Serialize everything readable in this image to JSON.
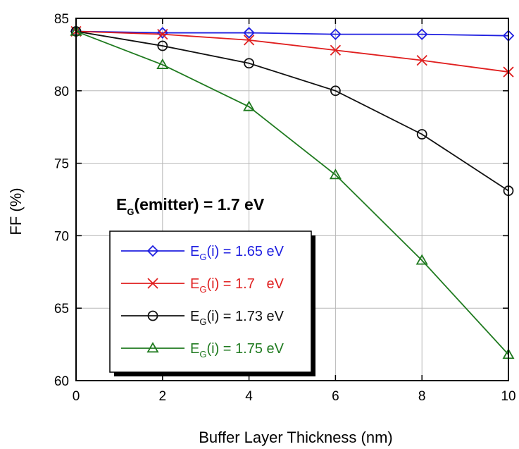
{
  "chart_data": {
    "type": "line",
    "xlabel": "Buffer Layer Thickness (nm)",
    "ylabel": "FF (%)",
    "xlim": [
      0,
      10
    ],
    "ylim": [
      60,
      85
    ],
    "xticks": [
      "0",
      "2",
      "4",
      "6",
      "8",
      "10"
    ],
    "yticks": [
      "60",
      "65",
      "70",
      "75",
      "80",
      "85"
    ],
    "grid": true,
    "legend_position": "bottom-left",
    "annotation": {
      "main": "E",
      "sub": "G",
      "rest": "(emitter) = 1.7 eV"
    },
    "x": [
      0,
      2,
      4,
      6,
      8,
      10
    ],
    "series": [
      {
        "label_main": "E",
        "label_sub": "G",
        "label_rest": "(i) = 1.65 eV",
        "color": "#1f1fe0",
        "marker": "diamond",
        "values": [
          84.1,
          84.0,
          84.0,
          83.9,
          83.9,
          83.8
        ]
      },
      {
        "label_main": "E",
        "label_sub": "G",
        "label_rest": "(i) = 1.7   eV",
        "color": "#e01f1f",
        "marker": "x",
        "values": [
          84.1,
          83.9,
          83.5,
          82.8,
          82.1,
          81.3
        ]
      },
      {
        "label_main": "E",
        "label_sub": "G",
        "label_rest": "(i) = 1.73 eV",
        "color": "#111111",
        "marker": "circle",
        "values": [
          84.1,
          83.1,
          81.9,
          80.0,
          77.0,
          73.1
        ]
      },
      {
        "label_main": "E",
        "label_sub": "G",
        "label_rest": "(i) = 1.75 eV",
        "color": "#1f7a1f",
        "marker": "triangle",
        "values": [
          84.1,
          81.8,
          78.9,
          74.2,
          68.3,
          61.8
        ]
      }
    ]
  }
}
